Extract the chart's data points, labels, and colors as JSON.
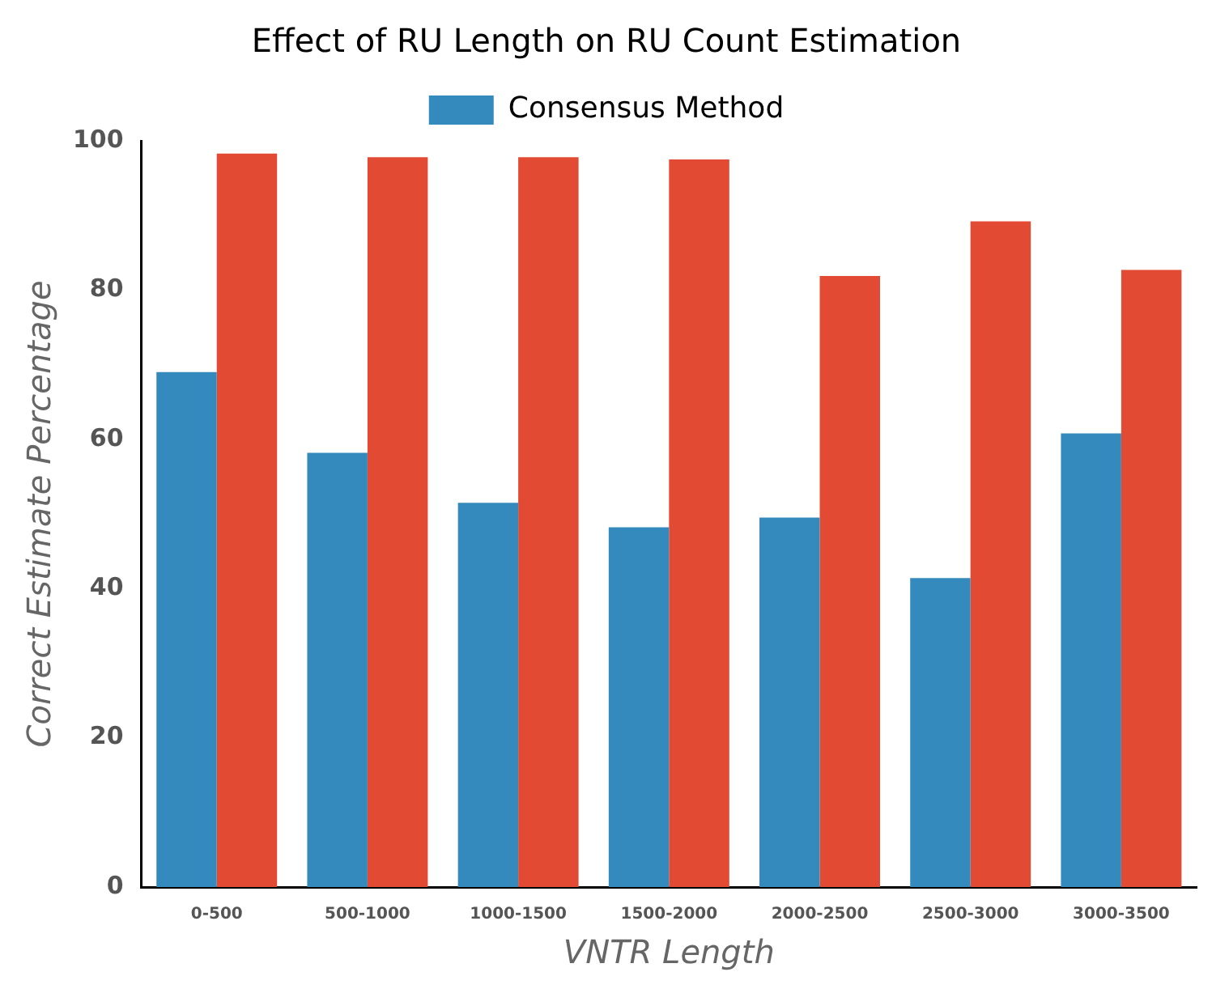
{
  "chart_data": {
    "type": "bar",
    "title": "Effect of RU Length on RU Count Estimation",
    "xlabel": "VNTR Length",
    "ylabel": "Correct Estimate Percentage",
    "categories": [
      "0-500",
      "500-1000",
      "1000-1500",
      "1500-2000",
      "2000-2500",
      "2500-3000",
      "3000-3500"
    ],
    "series": [
      {
        "name": "Consensus Method",
        "color": "#348abd",
        "values": [
          69,
          58.2,
          51.5,
          48.2,
          49.5,
          41.4,
          60.8
        ]
      },
      {
        "color": "#e24a33",
        "values": [
          98.3,
          97.8,
          97.8,
          97.5,
          81.9,
          89.2,
          82.7
        ]
      }
    ],
    "ylim": [
      0,
      100
    ],
    "yticks": [
      0,
      20,
      40,
      60,
      80,
      100
    ],
    "grid": false,
    "legend": "top"
  }
}
